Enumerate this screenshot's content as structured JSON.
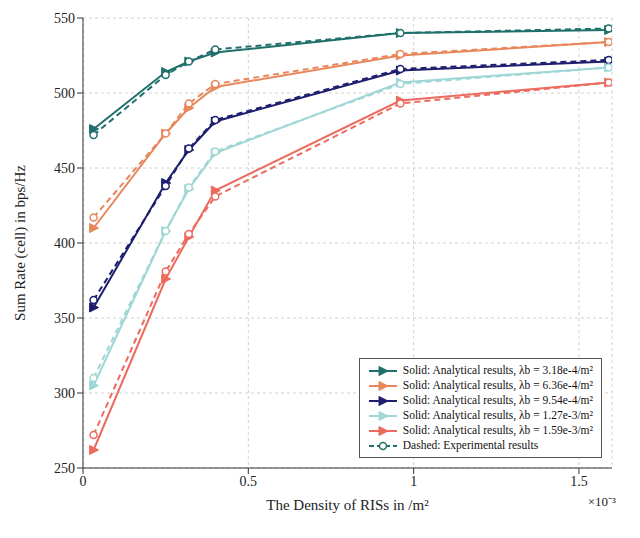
{
  "chart_data": {
    "type": "line",
    "x_label": "The Density of RISs in /m²",
    "y_label": "Sum Rate (cell) in bps/Hz",
    "annotations": [
      "×10⁻³"
    ],
    "x": [
      3.2e-05,
      0.00025,
      0.00032,
      0.0004,
      0.00096,
      0.00159
    ],
    "xlim": [
      0,
      0.0016
    ],
    "xticks": [
      0,
      {
        "value": 0.0005,
        "label": "0.5"
      },
      {
        "value": 0.001,
        "label": "1"
      },
      {
        "value": 0.0015,
        "label": "1.5"
      }
    ],
    "ylim": [
      250,
      550
    ],
    "yticks": [
      250,
      300,
      350,
      400,
      450,
      500,
      550
    ],
    "grid": true,
    "legend": "lower right",
    "series": [
      {
        "name": "Solid: Analytical results, λb = 3.18e-4/m²",
        "color": "#1f6f6b",
        "marker": "triangle-right",
        "line_style": "solid",
        "values": [
          476,
          514,
          521,
          527,
          540,
          542
        ]
      },
      {
        "name": "Solid: Analytical results, λb = 6.36e-4/m²",
        "color": "#e8875c",
        "marker": "triangle-right",
        "line_style": "solid",
        "values": [
          410,
          473,
          490,
          504,
          525,
          534
        ]
      },
      {
        "name": "Solid: Analytical results, λb = 9.54e-4/m²",
        "color": "#1d1f6e",
        "marker": "triangle-right",
        "line_style": "solid",
        "values": [
          357,
          440,
          462,
          481,
          515,
          521
        ]
      },
      {
        "name": "Solid: Analytical results, λb = 1.27e-3/m²",
        "color": "#9fd6d6",
        "marker": "triangle-right",
        "line_style": "solid",
        "values": [
          305,
          408,
          436,
          460,
          507,
          517
        ]
      },
      {
        "name": "Solid: Analytical results, λb = 1.59e-3/m²",
        "color": "#ec6b5f",
        "marker": "triangle-right",
        "line_style": "solid",
        "values": [
          262,
          376,
          404,
          435,
          495,
          507
        ]
      },
      {
        "name": "Dashed: Experimental results",
        "color": "#1f6f6b",
        "marker": "circle",
        "line_style": "dashed",
        "values": [
          472,
          512,
          521,
          529,
          540,
          543
        ]
      },
      {
        "name": "Dashed: Experimental results",
        "color": "#e8875c",
        "marker": "circle",
        "line_style": "dashed",
        "values": [
          417,
          473,
          493,
          506,
          526,
          534
        ]
      },
      {
        "name": "Dashed: Experimental results",
        "color": "#1d1f6e",
        "marker": "circle",
        "line_style": "dashed",
        "values": [
          362,
          438,
          463,
          482,
          516,
          522
        ]
      },
      {
        "name": "Dashed: Experimental results",
        "color": "#9fd6d6",
        "marker": "circle",
        "line_style": "dashed",
        "values": [
          310,
          408,
          437,
          461,
          506,
          517
        ]
      },
      {
        "name": "Dashed: Experimental results",
        "color": "#ec6b5f",
        "marker": "circle",
        "line_style": "dashed",
        "values": [
          272,
          381,
          406,
          431,
          493,
          507
        ]
      }
    ]
  }
}
